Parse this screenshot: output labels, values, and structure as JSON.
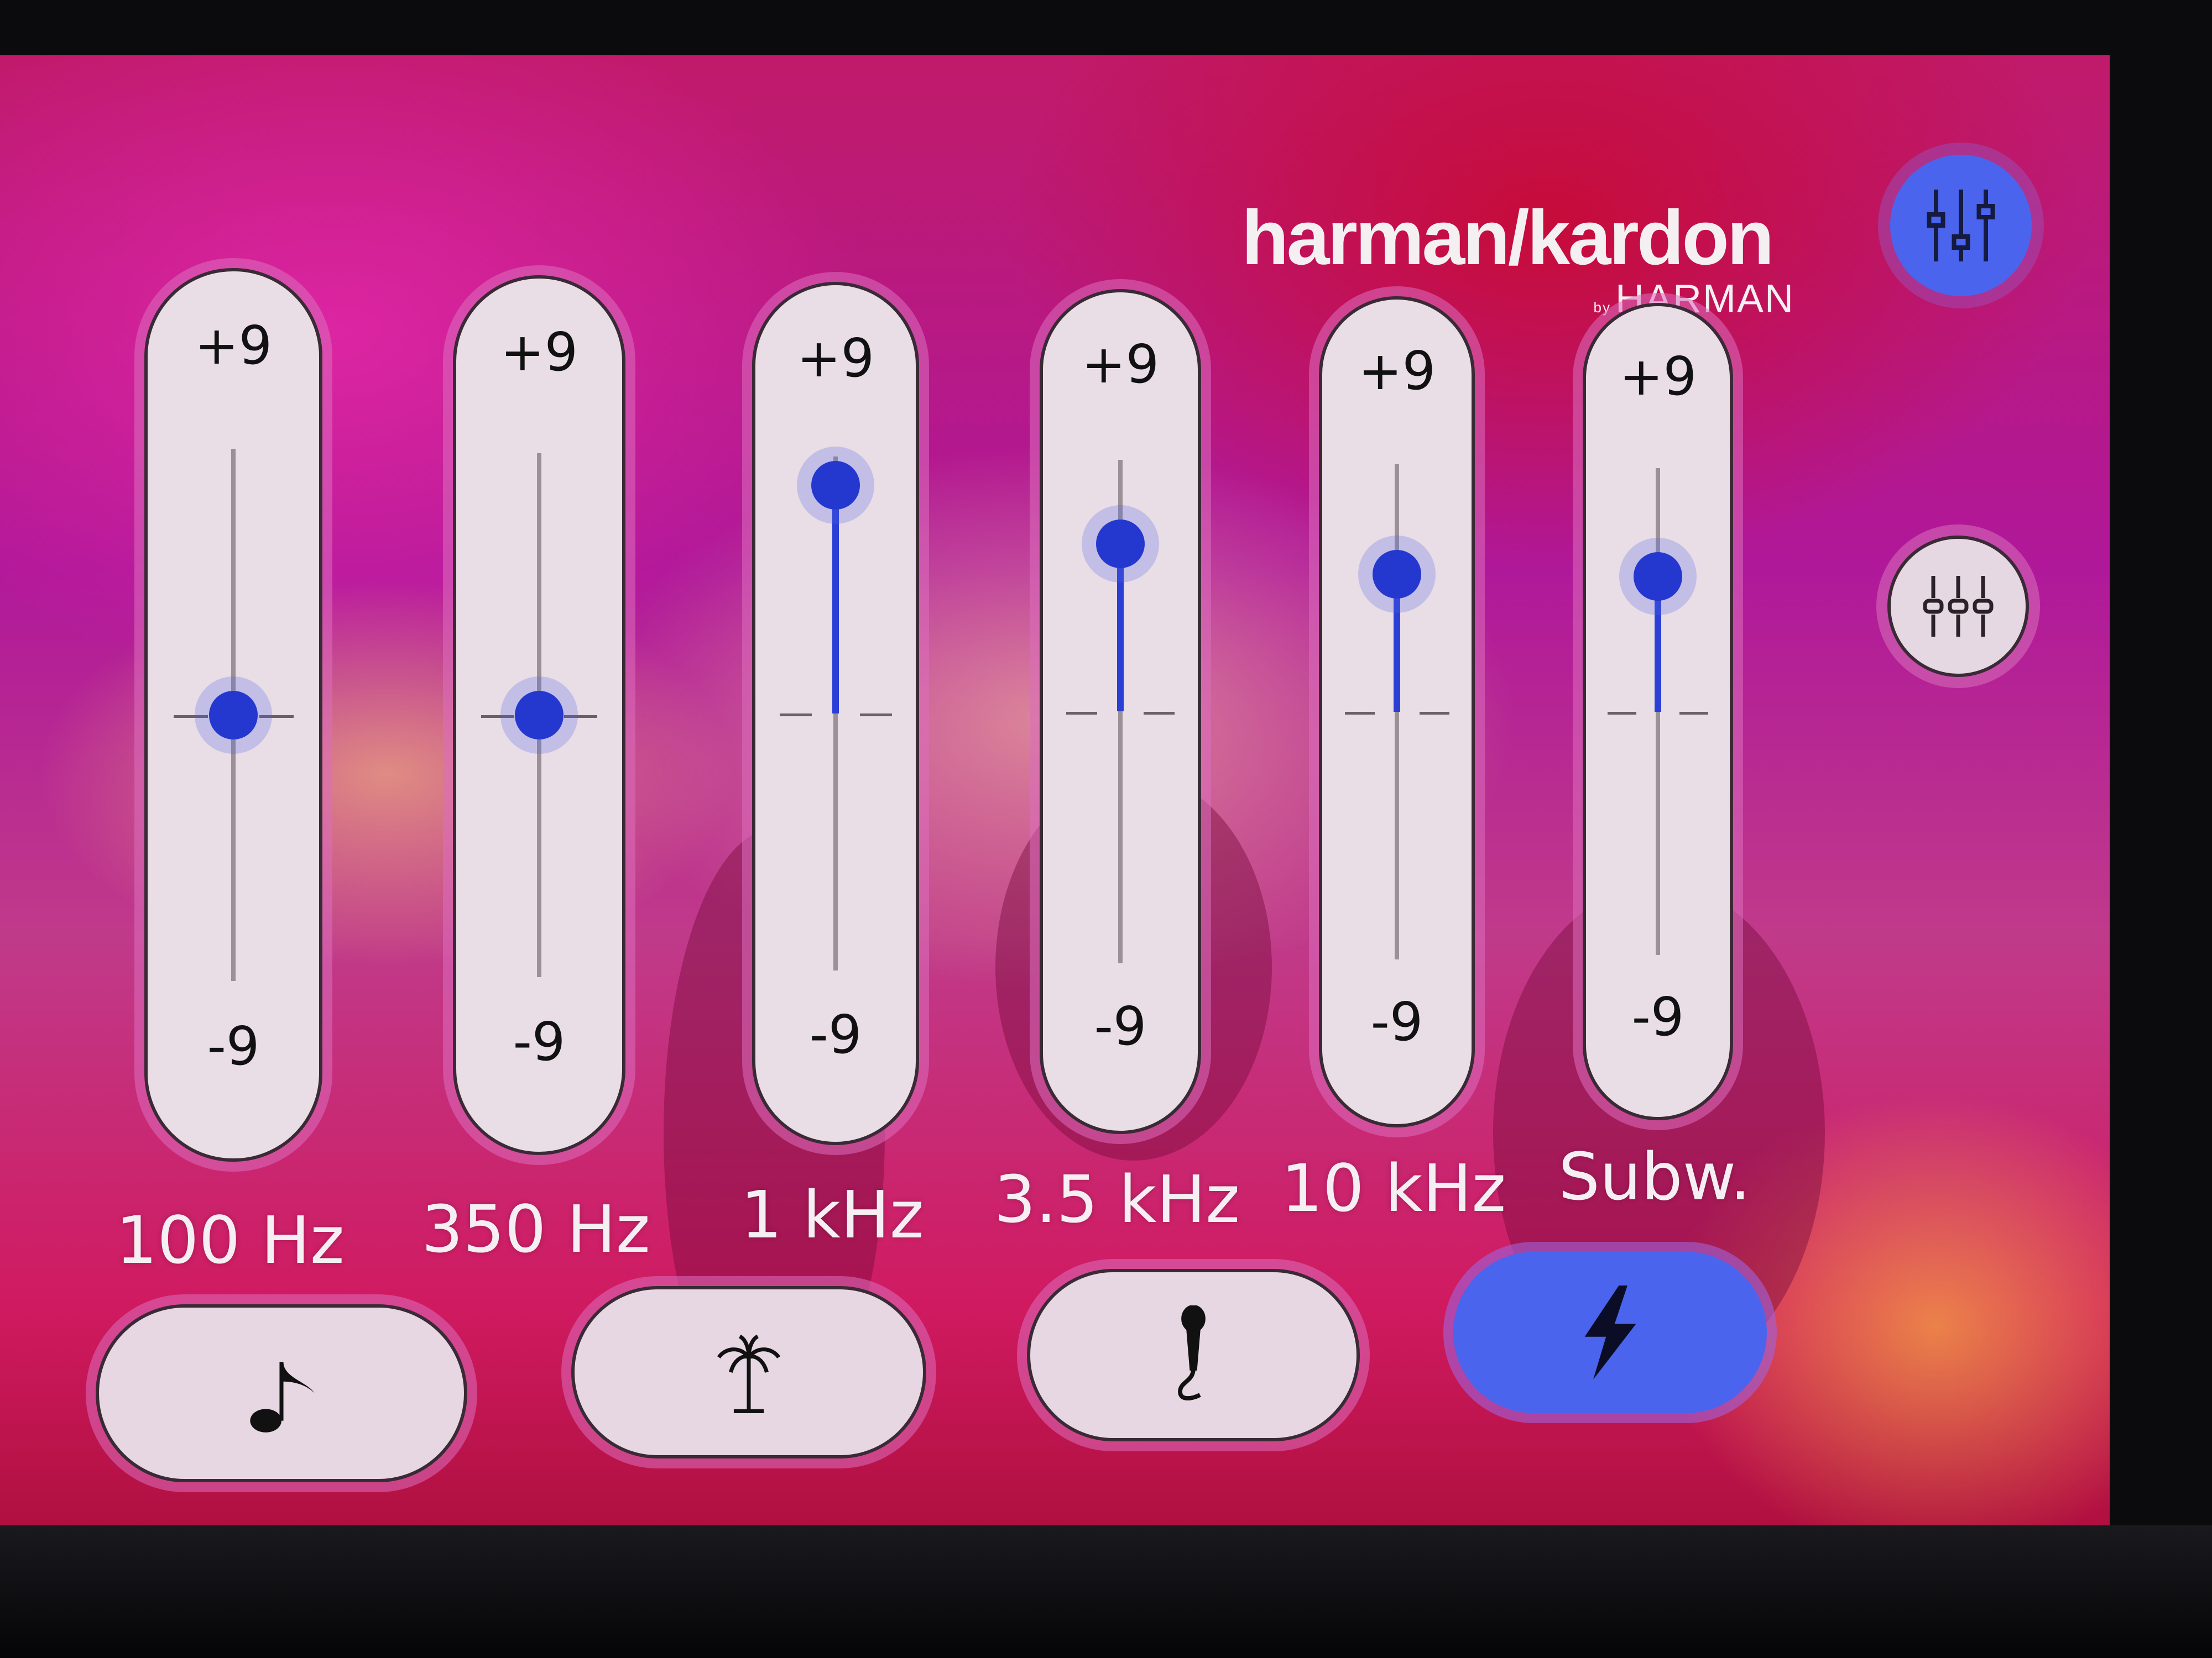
{
  "brand": {
    "logo_text": "harman/kardon",
    "logo_sub_by": "by",
    "logo_sub": "HARMAN"
  },
  "equalizer": {
    "max_label": "+9",
    "min_label": "-9",
    "range": [
      -9,
      9
    ],
    "bands": [
      {
        "label": "100 Hz",
        "value": 0
      },
      {
        "label": "350 Hz",
        "value": 0
      },
      {
        "label": "1 kHz",
        "value": 8
      },
      {
        "label": "3.5 kHz",
        "value": 6
      },
      {
        "label": "10 kHz",
        "value": 5
      },
      {
        "label": "Subw.",
        "value": 5
      }
    ]
  },
  "side_buttons": [
    {
      "icon": "equalizer-sliders-icon",
      "active": true
    },
    {
      "icon": "balance-fader-icon",
      "active": false
    }
  ],
  "presets": [
    {
      "icon": "music-note-icon",
      "active": false
    },
    {
      "icon": "palm-tree-icon",
      "active": false
    },
    {
      "icon": "microphone-icon",
      "active": false
    },
    {
      "icon": "lightning-bolt-icon",
      "active": true
    }
  ],
  "colors": {
    "accent": "#4a64ee",
    "knob": "#2438d0",
    "panel": "#e9dde6"
  }
}
